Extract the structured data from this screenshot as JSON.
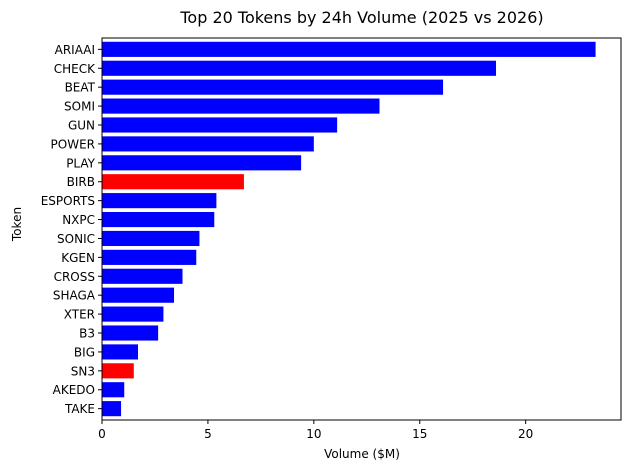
{
  "chart_data": {
    "type": "bar",
    "orientation": "horizontal",
    "title": "Top 20 Tokens by 24h Volume (2025 vs 2026)",
    "xlabel": "Volume ($M)",
    "ylabel": "Token",
    "xlim": [
      0,
      24.5
    ],
    "xticks": [
      0,
      5,
      10,
      15,
      20
    ],
    "xtick_labels": [
      "0",
      "5",
      "10",
      "15",
      "20"
    ],
    "grid": false,
    "categories": [
      "ARIAAI",
      "CHECK",
      "BEAT",
      "SOMI",
      "GUN",
      "POWER",
      "PLAY",
      "BIRB",
      "ESPORTS",
      "NXPC",
      "SONIC",
      "KGEN",
      "CROSS",
      "SHAGA",
      "XTER",
      "B3",
      "BIG",
      "SN3",
      "AKEDO",
      "TAKE"
    ],
    "values": [
      23.3,
      18.6,
      16.1,
      13.1,
      11.1,
      10.0,
      9.4,
      6.7,
      5.4,
      5.3,
      4.6,
      4.45,
      3.8,
      3.4,
      2.9,
      2.65,
      1.7,
      1.5,
      1.05,
      0.9
    ],
    "bar_colors": [
      "#0000ff",
      "#0000ff",
      "#0000ff",
      "#0000ff",
      "#0000ff",
      "#0000ff",
      "#0000ff",
      "#ff0000",
      "#0000ff",
      "#0000ff",
      "#0000ff",
      "#0000ff",
      "#0000ff",
      "#0000ff",
      "#0000ff",
      "#0000ff",
      "#0000ff",
      "#ff0000",
      "#0000ff",
      "#0000ff"
    ]
  }
}
